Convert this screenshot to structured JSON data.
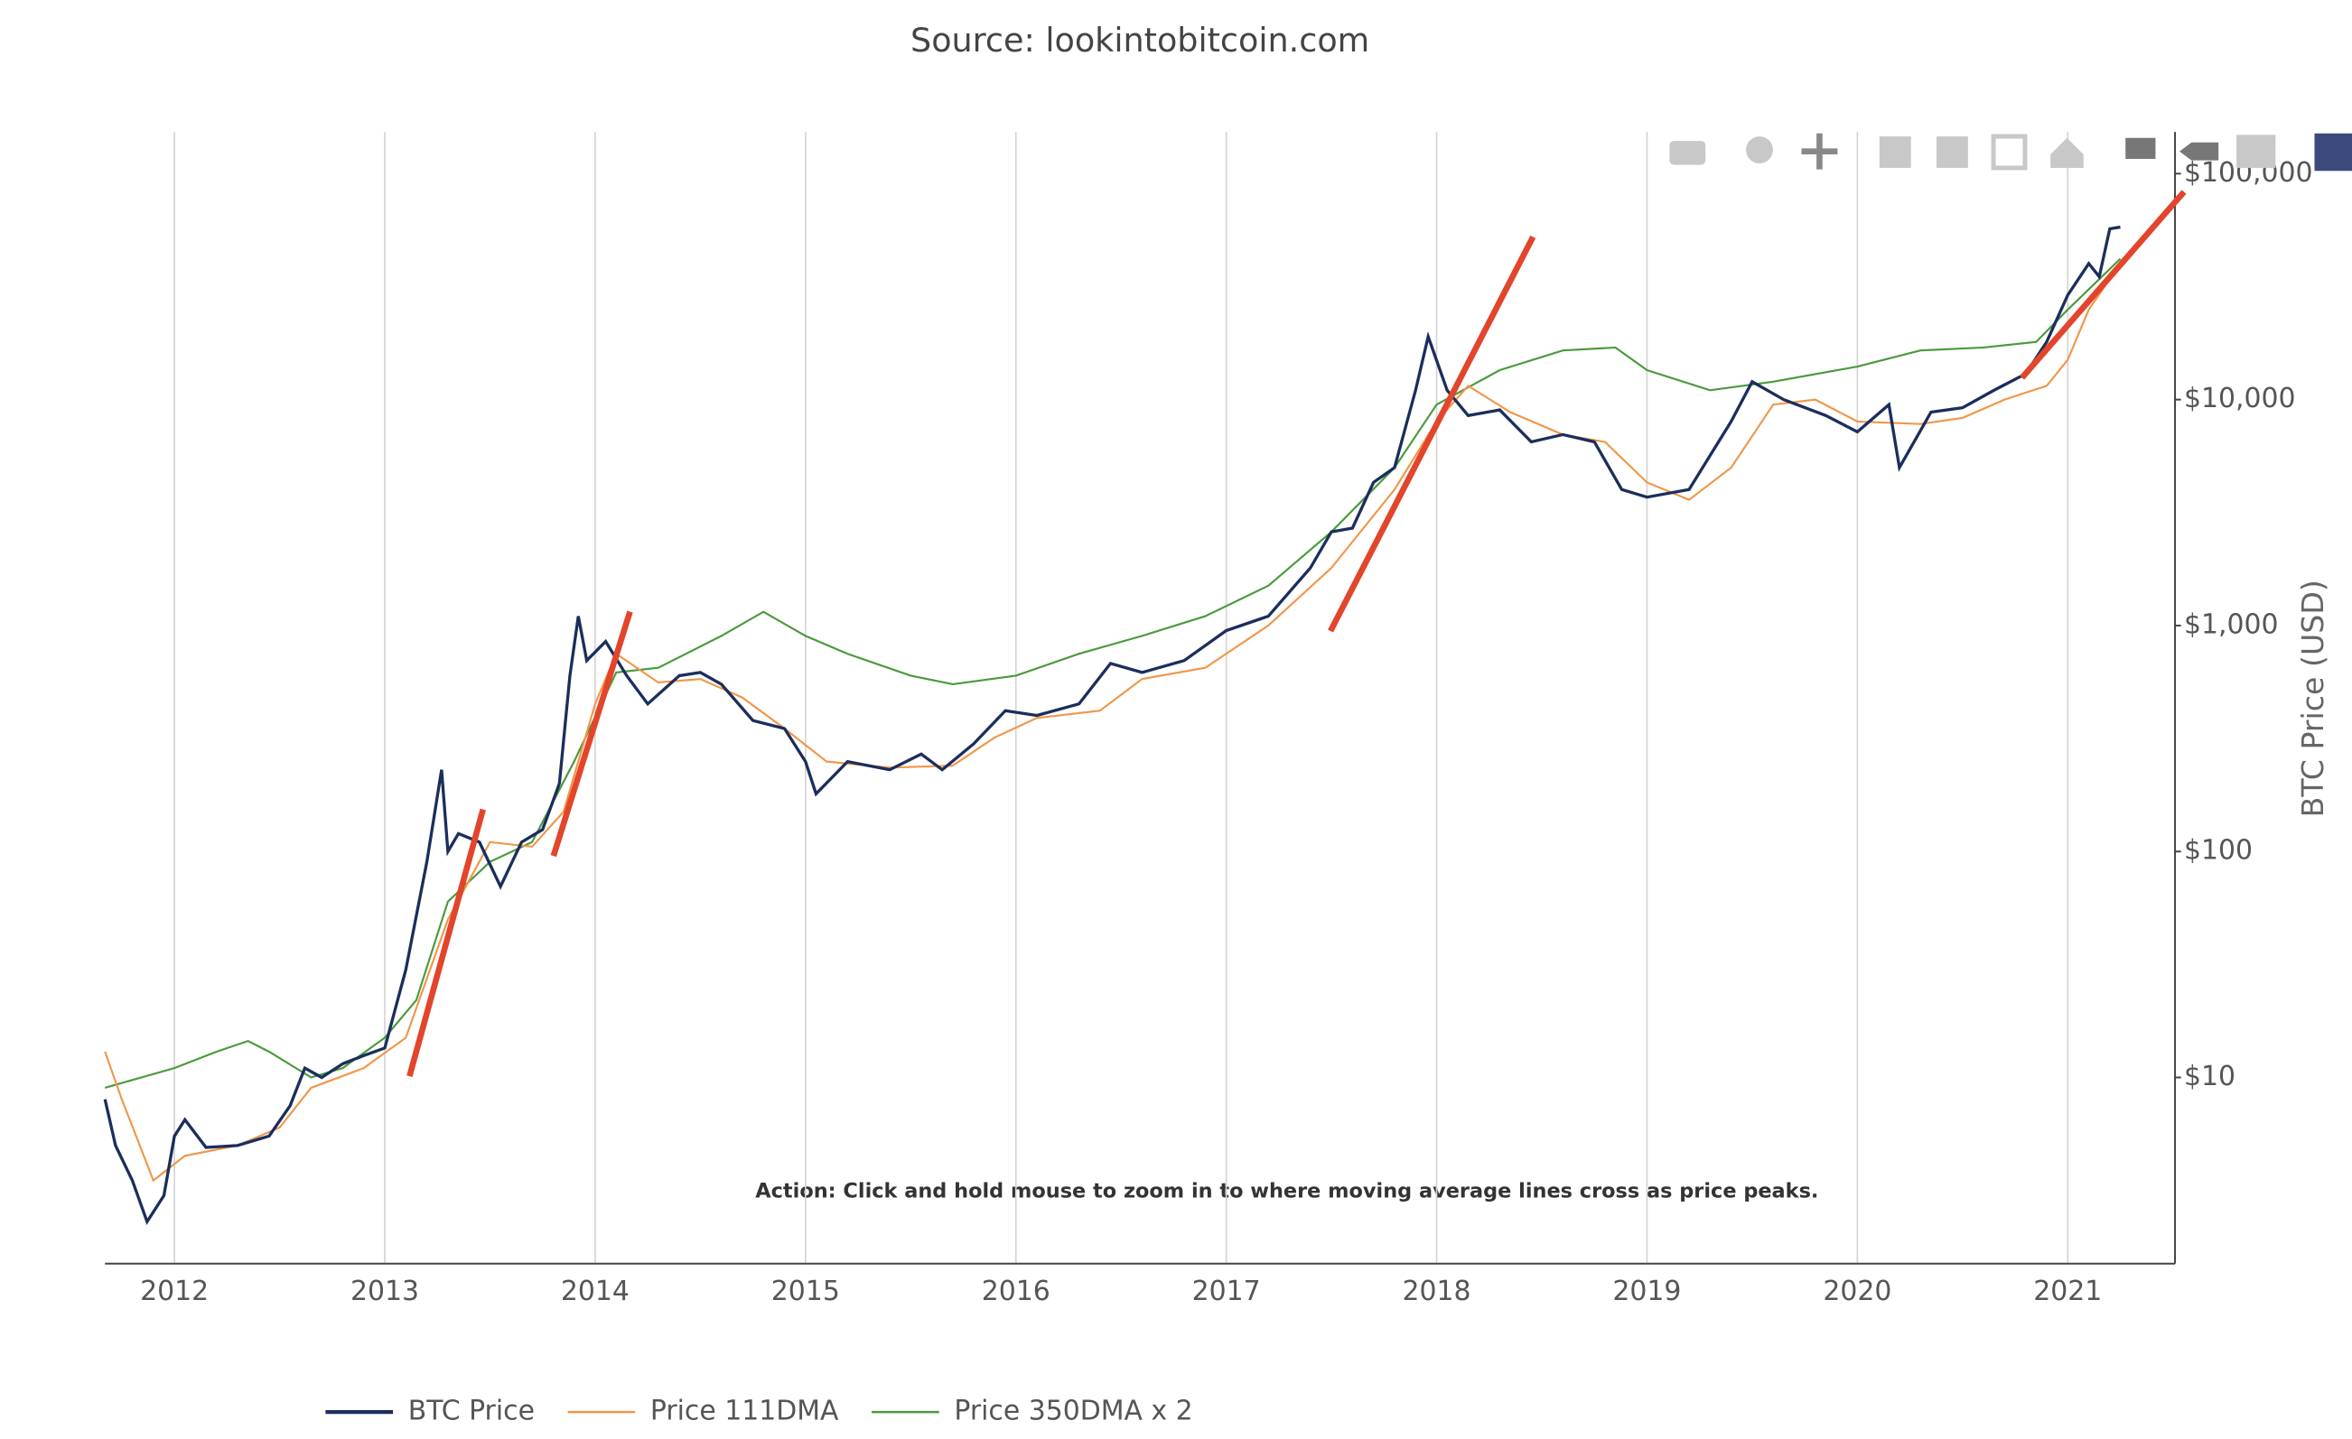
{
  "chart_data": {
    "type": "line",
    "title": "Source: lookintobitcoin.com",
    "ylabel": "BTC Price (USD)",
    "annotation": "Action: Click and hold mouse to zoom in to where moving average lines cross as price peaks.",
    "log_y": true,
    "grid": true,
    "legend": "bottom",
    "xlim": [
      2011.67,
      2021.51
    ],
    "xticks": [
      2012,
      2013,
      2014,
      2015,
      2016,
      2017,
      2018,
      2019,
      2020,
      2021
    ],
    "ylim": [
      1.5,
      153000
    ],
    "yticks": [
      {
        "value": 10,
        "label": "$10"
      },
      {
        "value": 100,
        "label": "$100"
      },
      {
        "value": 1000,
        "label": "$1,000"
      },
      {
        "value": 10000,
        "label": "$10,000"
      },
      {
        "value": 100000,
        "label": "$100,000"
      }
    ],
    "series": [
      {
        "name": "BTC Price",
        "color": "#1b2e5c",
        "x": [
          2011.67,
          2011.72,
          2011.8,
          2011.87,
          2011.95,
          2012.0,
          2012.05,
          2012.15,
          2012.3,
          2012.45,
          2012.55,
          2012.62,
          2012.7,
          2012.8,
          2012.9,
          2013.0,
          2013.1,
          2013.2,
          2013.27,
          2013.3,
          2013.35,
          2013.45,
          2013.55,
          2013.65,
          2013.75,
          2013.83,
          2013.88,
          2013.92,
          2013.96,
          2014.05,
          2014.15,
          2014.25,
          2014.4,
          2014.5,
          2014.6,
          2014.75,
          2014.9,
          2015.0,
          2015.05,
          2015.2,
          2015.4,
          2015.55,
          2015.65,
          2015.8,
          2015.95,
          2016.1,
          2016.3,
          2016.45,
          2016.6,
          2016.8,
          2017.0,
          2017.2,
          2017.4,
          2017.5,
          2017.6,
          2017.7,
          2017.8,
          2017.9,
          2017.96,
          2018.05,
          2018.15,
          2018.3,
          2018.45,
          2018.6,
          2018.75,
          2018.88,
          2019.0,
          2019.2,
          2019.4,
          2019.5,
          2019.65,
          2019.85,
          2020.0,
          2020.15,
          2020.2,
          2020.35,
          2020.5,
          2020.65,
          2020.8,
          2020.9,
          2021.0,
          2021.1,
          2021.15,
          2021.2,
          2021.25
        ],
        "values": [
          8,
          5,
          3.5,
          2.3,
          3.0,
          5.5,
          6.5,
          4.9,
          5.0,
          5.5,
          7.5,
          11,
          10,
          11.5,
          12.5,
          13.5,
          30,
          90,
          230,
          100,
          120,
          110,
          70,
          110,
          125,
          200,
          600,
          1100,
          700,
          850,
          600,
          450,
          600,
          620,
          550,
          380,
          350,
          250,
          180,
          250,
          230,
          270,
          230,
          300,
          420,
          400,
          450,
          680,
          620,
          700,
          950,
          1100,
          1800,
          2600,
          2700,
          4300,
          5000,
          11000,
          19000,
          11000,
          8500,
          9000,
          6500,
          7000,
          6500,
          4000,
          3700,
          4000,
          8000,
          12000,
          10000,
          8500,
          7200,
          9500,
          5000,
          8800,
          9200,
          11000,
          13000,
          18000,
          29000,
          40000,
          35000,
          57000,
          58000
        ]
      },
      {
        "name": "Price 111DMA",
        "color": "#f0974a",
        "x": [
          2011.67,
          2011.75,
          2011.9,
          2012.05,
          2012.3,
          2012.5,
          2012.65,
          2012.9,
          2013.1,
          2013.3,
          2013.5,
          2013.7,
          2013.85,
          2014.0,
          2014.1,
          2014.3,
          2014.5,
          2014.7,
          2014.9,
          2015.1,
          2015.4,
          2015.7,
          2015.9,
          2016.1,
          2016.4,
          2016.6,
          2016.9,
          2017.2,
          2017.5,
          2017.8,
          2018.0,
          2018.15,
          2018.35,
          2018.6,
          2018.8,
          2019.0,
          2019.2,
          2019.4,
          2019.6,
          2019.8,
          2020.0,
          2020.3,
          2020.5,
          2020.7,
          2020.9,
          2021.0,
          2021.1,
          2021.25
        ],
        "values": [
          13,
          8,
          3.5,
          4.5,
          5.0,
          6.0,
          9,
          11,
          15,
          50,
          110,
          105,
          150,
          450,
          750,
          560,
          580,
          480,
          350,
          250,
          235,
          240,
          320,
          390,
          420,
          580,
          650,
          1000,
          1800,
          4000,
          8000,
          11500,
          8800,
          7000,
          6500,
          4300,
          3600,
          5000,
          9500,
          10000,
          8000,
          7800,
          8300,
          10000,
          11500,
          15000,
          25000,
          40000
        ]
      },
      {
        "name": "Price 350DMA x 2",
        "color": "#4a9a3c",
        "x": [
          2011.67,
          2012.0,
          2012.2,
          2012.35,
          2012.45,
          2012.65,
          2012.8,
          2013.0,
          2013.15,
          2013.3,
          2013.5,
          2013.7,
          2013.9,
          2014.1,
          2014.3,
          2014.6,
          2014.8,
          2015.0,
          2015.2,
          2015.5,
          2015.7,
          2016.0,
          2016.3,
          2016.6,
          2016.9,
          2017.2,
          2017.5,
          2017.8,
          2018.0,
          2018.3,
          2018.6,
          2018.85,
          2019.0,
          2019.3,
          2019.6,
          2020.0,
          2020.3,
          2020.6,
          2020.85,
          2021.0,
          2021.25
        ],
        "values": [
          9,
          11,
          13,
          14.5,
          13,
          10,
          11,
          15,
          22,
          60,
          90,
          110,
          250,
          620,
          650,
          900,
          1150,
          900,
          750,
          600,
          550,
          600,
          750,
          900,
          1100,
          1500,
          2600,
          5000,
          9500,
          13500,
          16500,
          17000,
          13500,
          11000,
          12000,
          14000,
          16500,
          17000,
          18000,
          25000,
          42000
        ]
      }
    ]
  }
}
